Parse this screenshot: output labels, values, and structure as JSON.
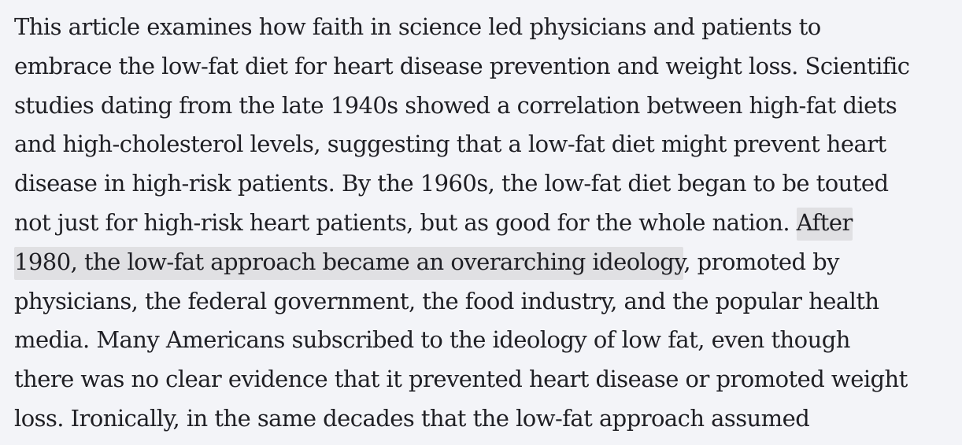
{
  "article": {
    "abstract": {
      "lines": [
        [
          {
            "text": "This article examines how faith in science led physicians and patients to"
          }
        ],
        [
          {
            "text": "embrace the low-fat diet for heart disease prevention and weight loss. Scientific"
          }
        ],
        [
          {
            "text": "studies dating from the late 1940s showed a correlation between high-fat diets"
          }
        ],
        [
          {
            "text": "and high-cholesterol levels, suggesting that a low-fat diet might prevent heart"
          }
        ],
        [
          {
            "text": "disease in high-risk patients. By the 1960s, the low-fat diet began to be touted"
          }
        ],
        [
          {
            "text": "not just for high-risk heart patients, but as good for the whole nation. "
          },
          {
            "text": "After",
            "highlighted": true
          }
        ],
        [
          {
            "text": "1980, the low-fat approach became an overarching ideology",
            "highlighted": true
          },
          {
            "text": ", promoted by"
          }
        ],
        [
          {
            "text": "physicians, the federal government, the food industry, and the popular health"
          }
        ],
        [
          {
            "text": "media. Many Americans subscribed to the ideology of low fat, even though"
          }
        ],
        [
          {
            "text": "there was no clear evidence that it prevented heart disease or promoted weight"
          }
        ],
        [
          {
            "text": "loss. Ironically, in the same decades that the low-fat approach assumed"
          }
        ]
      ]
    },
    "colors": {
      "background": "#f3f4f8",
      "text": "#1f1f24",
      "highlight": "#e0e0e3"
    }
  }
}
